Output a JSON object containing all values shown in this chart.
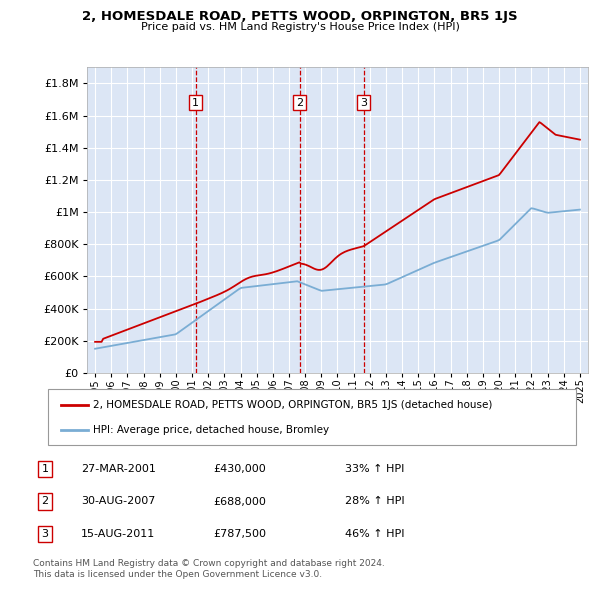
{
  "title": "2, HOMESDALE ROAD, PETTS WOOD, ORPINGTON, BR5 1JS",
  "subtitle": "Price paid vs. HM Land Registry's House Price Index (HPI)",
  "plot_background": "#dce6f5",
  "red_line_color": "#cc0000",
  "blue_line_color": "#7aadd4",
  "sale_markers": [
    {
      "year": 2001.23,
      "price": 430000,
      "label": "1"
    },
    {
      "year": 2007.66,
      "price": 688000,
      "label": "2"
    },
    {
      "year": 2011.62,
      "price": 787500,
      "label": "3"
    }
  ],
  "vline_color": "#cc0000",
  "legend_entries": [
    "2, HOMESDALE ROAD, PETTS WOOD, ORPINGTON, BR5 1JS (detached house)",
    "HPI: Average price, detached house, Bromley"
  ],
  "table_rows": [
    {
      "num": "1",
      "date": "27-MAR-2001",
      "price": "£430,000",
      "change": "33% ↑ HPI"
    },
    {
      "num": "2",
      "date": "30-AUG-2007",
      "price": "£688,000",
      "change": "28% ↑ HPI"
    },
    {
      "num": "3",
      "date": "15-AUG-2011",
      "price": "£787,500",
      "change": "46% ↑ HPI"
    }
  ],
  "footnote1": "Contains HM Land Registry data © Crown copyright and database right 2024.",
  "footnote2": "This data is licensed under the Open Government Licence v3.0.",
  "ylim": [
    0,
    1900000
  ],
  "xlim": [
    1994.5,
    2025.5
  ],
  "yticks": [
    0,
    200000,
    400000,
    600000,
    800000,
    1000000,
    1200000,
    1400000,
    1600000,
    1800000
  ]
}
